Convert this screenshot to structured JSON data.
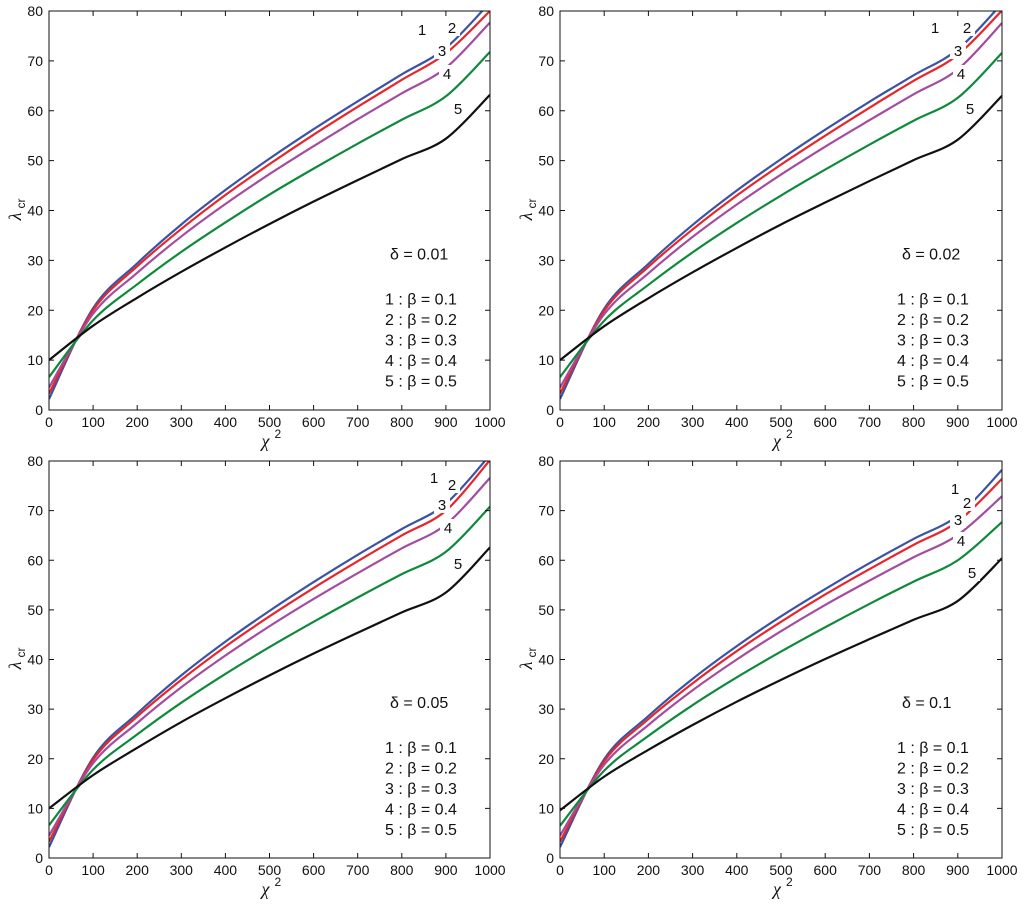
{
  "colors": {
    "series": [
      "#3a53a4",
      "#e8262a",
      "#a44ca0",
      "#0f8a3c",
      "#111111"
    ]
  },
  "chart_data": [
    {
      "type": "line",
      "xlabel": "χ",
      "xlabel_sup": "2",
      "ylabel": "λ",
      "ylabel_sub": "cr",
      "xlim": [
        0,
        1000
      ],
      "ylim": [
        0,
        80
      ],
      "xticks": [
        "0",
        "100",
        "200",
        "300",
        "400",
        "500",
        "600",
        "700",
        "800",
        "900",
        "1000"
      ],
      "yticks": [
        "0",
        "10",
        "20",
        "30",
        "40",
        "50",
        "60",
        "70",
        "80"
      ],
      "annotation_title": "δ = 0.01",
      "legend": [
        "1 : β = 0.1",
        "2 : β = 0.2",
        "3 : β = 0.3",
        "4 : β = 0.4",
        "5 : β = 0.5"
      ],
      "series": [
        {
          "name": "1",
          "x": [
            0,
            100,
            200,
            300,
            400,
            500,
            600,
            700,
            800,
            900,
            1000
          ],
          "y": [
            2.2,
            20.4,
            29.4,
            37.2,
            44.1,
            50.4,
            56.3,
            61.9,
            67.3,
            72.6,
            81.7
          ]
        },
        {
          "name": "2",
          "x": [
            0,
            100,
            200,
            300,
            400,
            500,
            600,
            700,
            800,
            900,
            1000
          ],
          "y": [
            3.3,
            20.0,
            28.8,
            36.3,
            43.1,
            49.3,
            55.2,
            60.8,
            66.2,
            71.5,
            80.0
          ]
        },
        {
          "name": "3",
          "x": [
            0,
            100,
            200,
            300,
            400,
            500,
            600,
            700,
            800,
            900,
            1000
          ],
          "y": [
            4.5,
            19.3,
            27.5,
            34.8,
            41.3,
            47.3,
            52.9,
            58.3,
            63.5,
            68.6,
            77.7
          ]
        },
        {
          "name": "4",
          "x": [
            0,
            100,
            200,
            300,
            400,
            500,
            600,
            700,
            800,
            900,
            1000
          ],
          "y": [
            6.6,
            18.0,
            25.2,
            31.7,
            37.6,
            43.2,
            48.4,
            53.4,
            58.2,
            62.9,
            71.8
          ]
        },
        {
          "name": "5",
          "x": [
            0,
            100,
            200,
            300,
            400,
            500,
            600,
            700,
            800,
            900,
            1000
          ],
          "y": [
            10.0,
            16.9,
            22.5,
            27.7,
            32.6,
            37.3,
            41.8,
            46.1,
            50.3,
            54.4,
            63.2
          ]
        }
      ]
    },
    {
      "type": "line",
      "xlabel": "χ",
      "xlabel_sup": "2",
      "ylabel": "λ",
      "ylabel_sub": "cr",
      "xlim": [
        0,
        1000
      ],
      "ylim": [
        0,
        80
      ],
      "xticks": [
        "0",
        "100",
        "200",
        "300",
        "400",
        "500",
        "600",
        "700",
        "800",
        "900",
        "1000"
      ],
      "yticks": [
        "0",
        "10",
        "20",
        "30",
        "40",
        "50",
        "60",
        "70",
        "80"
      ],
      "annotation_title": "δ = 0.02",
      "legend": [
        "1 : β = 0.1",
        "2 : β = 0.2",
        "3 : β = 0.3",
        "4 : β = 0.4",
        "5 : β = 0.5"
      ],
      "series": [
        {
          "name": "1",
          "x": [
            0,
            100,
            200,
            300,
            400,
            500,
            600,
            700,
            800,
            900,
            1000
          ],
          "y": [
            2.2,
            20.3,
            29.3,
            37.1,
            44.0,
            50.3,
            56.2,
            61.8,
            67.1,
            72.3,
            81.5
          ]
        },
        {
          "name": "2",
          "x": [
            0,
            100,
            200,
            300,
            400,
            500,
            600,
            700,
            800,
            900,
            1000
          ],
          "y": [
            3.3,
            19.9,
            28.7,
            36.2,
            43.0,
            49.2,
            55.0,
            60.6,
            66.0,
            71.2,
            80.1
          ]
        },
        {
          "name": "3",
          "x": [
            0,
            100,
            200,
            300,
            400,
            500,
            600,
            700,
            800,
            900,
            1000
          ],
          "y": [
            4.5,
            19.2,
            27.4,
            34.7,
            41.2,
            47.2,
            52.8,
            58.1,
            63.3,
            68.3,
            77.6
          ]
        },
        {
          "name": "4",
          "x": [
            0,
            100,
            200,
            300,
            400,
            500,
            600,
            700,
            800,
            900,
            1000
          ],
          "y": [
            6.6,
            17.9,
            25.1,
            31.6,
            37.5,
            43.0,
            48.2,
            53.2,
            58.0,
            62.6,
            71.6
          ]
        },
        {
          "name": "5",
          "x": [
            0,
            100,
            200,
            300,
            400,
            500,
            600,
            700,
            800,
            900,
            1000
          ],
          "y": [
            10.0,
            16.8,
            22.4,
            27.6,
            32.5,
            37.2,
            41.6,
            45.9,
            50.1,
            54.2,
            63.0
          ]
        }
      ]
    },
    {
      "type": "line",
      "xlabel": "χ",
      "xlabel_sup": "2",
      "ylabel": "λ",
      "ylabel_sub": "cr",
      "xlim": [
        0,
        1000
      ],
      "ylim": [
        0,
        80
      ],
      "xticks": [
        "0",
        "100",
        "200",
        "300",
        "400",
        "500",
        "600",
        "700",
        "800",
        "900",
        "1000"
      ],
      "yticks": [
        "0",
        "10",
        "20",
        "30",
        "40",
        "50",
        "60",
        "70",
        "80"
      ],
      "annotation_title": "δ = 0.05",
      "legend": [
        "1 : β = 0.1",
        "2 : β = 0.2",
        "3 : β = 0.3",
        "4 : β = 0.4",
        "5 : β = 0.5"
      ],
      "series": [
        {
          "name": "1",
          "x": [
            0,
            100,
            200,
            300,
            400,
            500,
            600,
            700,
            800,
            900,
            1000
          ],
          "y": [
            2.2,
            20.2,
            29.1,
            36.8,
            43.6,
            49.8,
            55.6,
            61.1,
            66.3,
            71.4,
            81.2
          ]
        },
        {
          "name": "2",
          "x": [
            0,
            100,
            200,
            300,
            400,
            500,
            600,
            700,
            800,
            900,
            1000
          ],
          "y": [
            3.3,
            19.8,
            28.5,
            35.9,
            42.6,
            48.7,
            54.4,
            59.8,
            65.0,
            70.0,
            80.2
          ]
        },
        {
          "name": "3",
          "x": [
            0,
            100,
            200,
            300,
            400,
            500,
            600,
            700,
            800,
            900,
            1000
          ],
          "y": [
            4.5,
            19.1,
            27.2,
            34.4,
            40.8,
            46.7,
            52.2,
            57.4,
            62.4,
            67.2,
            76.6
          ]
        },
        {
          "name": "4",
          "x": [
            0,
            100,
            200,
            300,
            400,
            500,
            600,
            700,
            800,
            900,
            1000
          ],
          "y": [
            6.6,
            17.8,
            24.9,
            31.3,
            37.1,
            42.5,
            47.6,
            52.5,
            57.2,
            61.7,
            70.8
          ]
        },
        {
          "name": "5",
          "x": [
            0,
            100,
            200,
            300,
            400,
            500,
            600,
            700,
            800,
            900,
            1000
          ],
          "y": [
            10.0,
            16.7,
            22.2,
            27.4,
            32.2,
            36.8,
            41.2,
            45.4,
            49.5,
            53.5,
            62.6
          ]
        }
      ]
    },
    {
      "type": "line",
      "xlabel": "χ",
      "xlabel_sup": "2",
      "ylabel": "λ",
      "ylabel_sub": "cr",
      "xlim": [
        0,
        1000
      ],
      "ylim": [
        0,
        80
      ],
      "xticks": [
        "0",
        "100",
        "200",
        "300",
        "400",
        "500",
        "600",
        "700",
        "800",
        "900",
        "1000"
      ],
      "yticks": [
        "0",
        "10",
        "20",
        "30",
        "40",
        "50",
        "60",
        "70",
        "80"
      ],
      "annotation_title": "δ = 0.1",
      "legend": [
        "1 : β = 0.1",
        "2 : β = 0.2",
        "3 : β = 0.3",
        "4 : β = 0.4",
        "5 : β = 0.5"
      ],
      "series": [
        {
          "name": "1",
          "x": [
            0,
            100,
            200,
            300,
            400,
            500,
            600,
            700,
            800,
            900,
            1000
          ],
          "y": [
            2.2,
            19.9,
            28.6,
            36.1,
            42.7,
            48.7,
            54.2,
            59.4,
            64.3,
            69.0,
            78.2
          ]
        },
        {
          "name": "2",
          "x": [
            0,
            100,
            200,
            300,
            400,
            500,
            600,
            700,
            800,
            900,
            1000
          ],
          "y": [
            3.3,
            19.5,
            28.0,
            35.2,
            41.7,
            47.6,
            53.1,
            58.2,
            63.1,
            67.8,
            76.4
          ]
        },
        {
          "name": "3",
          "x": [
            0,
            100,
            200,
            300,
            400,
            500,
            600,
            700,
            800,
            900,
            1000
          ],
          "y": [
            4.5,
            18.8,
            26.8,
            33.8,
            40.0,
            45.7,
            51.0,
            55.9,
            60.6,
            65.1,
            72.9
          ]
        },
        {
          "name": "4",
          "x": [
            0,
            100,
            200,
            300,
            400,
            500,
            600,
            700,
            800,
            900,
            1000
          ],
          "y": [
            6.5,
            17.6,
            24.6,
            30.8,
            36.4,
            41.6,
            46.5,
            51.2,
            55.7,
            60.0,
            67.7
          ]
        },
        {
          "name": "5",
          "x": [
            0,
            100,
            200,
            300,
            400,
            500,
            600,
            700,
            800,
            900,
            1000
          ],
          "y": [
            9.6,
            16.4,
            21.8,
            26.8,
            31.5,
            35.9,
            40.1,
            44.1,
            48.0,
            51.8,
            60.4
          ]
        }
      ]
    }
  ]
}
